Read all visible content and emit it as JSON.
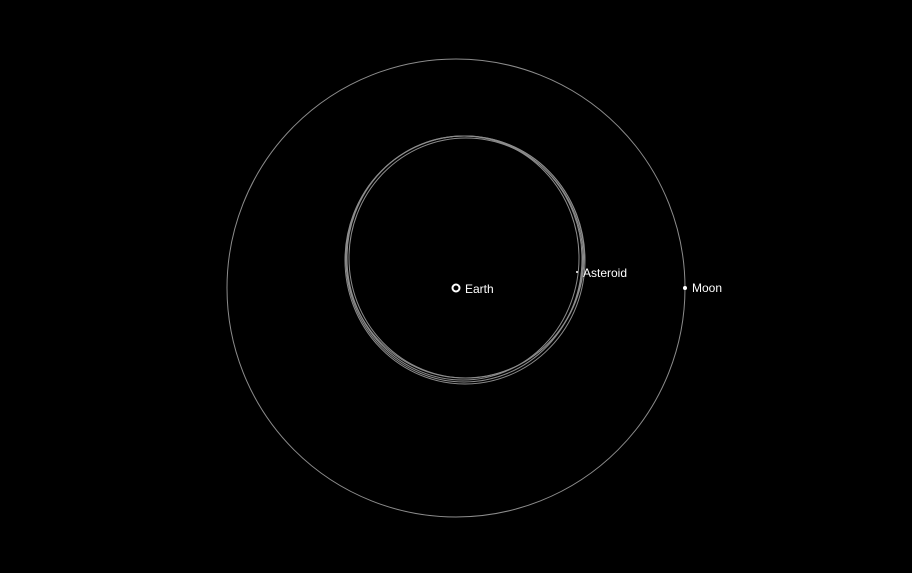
{
  "scene": {
    "background": "#000000",
    "orbit_color": "#8c8c8c",
    "body_color": "#ffffff"
  },
  "bodies": {
    "earth": {
      "label": "Earth"
    },
    "asteroid": {
      "label": "Asteroid"
    },
    "moon": {
      "label": "Moon"
    }
  }
}
